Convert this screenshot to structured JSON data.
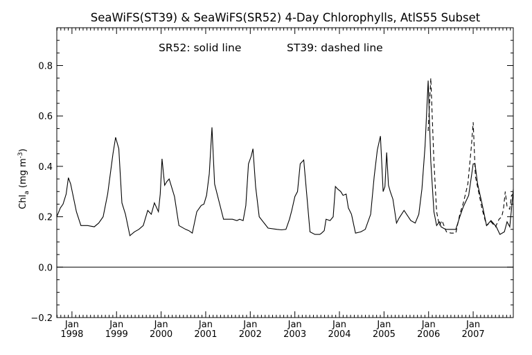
{
  "chart_data": {
    "type": "line",
    "title": "SeaWiFS(ST39) & SeaWiFS(SR52) 4-Day Chlorophylls, AtlS55 Subset",
    "annotation_left": "SR52: solid line",
    "annotation_right": "ST39: dashed line",
    "ylabel": "Chl",
    "ylabel_sub": "a",
    "ylabel_unit_open": " (mg m",
    "ylabel_unit_sup": "-3",
    "ylabel_unit_close": ")",
    "xlabel": "",
    "xlim": [
      1997.66,
      2007.9
    ],
    "ylim": [
      -0.2,
      0.95
    ],
    "yticks": [
      {
        "value": -0.2,
        "label": "−0.2"
      },
      {
        "value": 0.0,
        "label": "0.0"
      },
      {
        "value": 0.2,
        "label": "0.2"
      },
      {
        "value": 0.4,
        "label": "0.4"
      },
      {
        "value": 0.6,
        "label": "0.6"
      },
      {
        "value": 0.8,
        "label": "0.8"
      }
    ],
    "xticks": [
      {
        "value": 1998.0,
        "month": "Jan",
        "year": "1998"
      },
      {
        "value": 1999.0,
        "month": "Jan",
        "year": "1999"
      },
      {
        "value": 2000.0,
        "month": "Jan",
        "year": "2000"
      },
      {
        "value": 2001.0,
        "month": "Jan",
        "year": "2001"
      },
      {
        "value": 2002.0,
        "month": "Jan",
        "year": "2002"
      },
      {
        "value": 2003.0,
        "month": "Jan",
        "year": "2003"
      },
      {
        "value": 2004.0,
        "month": "Jan",
        "year": "2004"
      },
      {
        "value": 2005.0,
        "month": "Jan",
        "year": "2005"
      },
      {
        "value": 2006.0,
        "month": "Jan",
        "year": "2006"
      },
      {
        "value": 2007.0,
        "month": "Jan",
        "year": "2007"
      }
    ],
    "zero_line": true,
    "series": [
      {
        "name": "SR52",
        "style": "solid",
        "x": [
          1997.66,
          1997.74,
          1997.8,
          1997.87,
          1997.92,
          1997.97,
          1998.1,
          1998.2,
          1998.35,
          1998.5,
          1998.6,
          1998.7,
          1998.8,
          1998.92,
          1998.98,
          1999.05,
          1999.12,
          1999.2,
          1999.3,
          1999.4,
          1999.5,
          1999.6,
          1999.7,
          1999.78,
          1999.85,
          1999.94,
          1999.98,
          2000.02,
          2000.08,
          2000.13,
          2000.18,
          2000.3,
          2000.4,
          2000.55,
          2000.62,
          2000.7,
          2000.8,
          2000.9,
          2000.96,
          2001.02,
          2001.08,
          2001.14,
          2001.2,
          2001.4,
          2001.6,
          2001.7,
          2001.76,
          2001.84,
          2001.9,
          2001.96,
          2002.02,
          2002.06,
          2002.12,
          2002.2,
          2002.4,
          2002.6,
          2002.7,
          2002.8,
          2002.88,
          2002.93,
          2003.0,
          2003.06,
          2003.12,
          2003.2,
          2003.34,
          2003.45,
          2003.56,
          2003.6,
          2003.66,
          2003.7,
          2003.79,
          2003.86,
          2003.91,
          2003.96,
          2004.03,
          2004.08,
          2004.15,
          2004.2,
          2004.27,
          2004.36,
          2004.48,
          2004.58,
          2004.7,
          2004.78,
          2004.85,
          2004.92,
          2004.98,
          2005.02,
          2005.06,
          2005.1,
          2005.14,
          2005.2,
          2005.28,
          2005.34,
          2005.45,
          2005.6,
          2005.7,
          2005.78,
          2005.85,
          2005.92,
          2005.99,
          2006.05,
          2006.12,
          2006.18,
          2006.24,
          2006.28,
          2006.38,
          2006.5,
          2006.61,
          2006.7,
          2006.78,
          2006.9,
          2007.0,
          2007.04,
          2007.1,
          2007.2,
          2007.3,
          2007.4,
          2007.52,
          2007.6,
          2007.7,
          2007.76,
          2007.82,
          2007.86,
          2007.9
        ],
        "y": [
          0.2,
          0.235,
          0.25,
          0.29,
          0.355,
          0.33,
          0.22,
          0.165,
          0.165,
          0.16,
          0.175,
          0.2,
          0.29,
          0.45,
          0.515,
          0.47,
          0.255,
          0.21,
          0.125,
          0.14,
          0.15,
          0.165,
          0.225,
          0.21,
          0.255,
          0.22,
          0.29,
          0.43,
          0.325,
          0.34,
          0.35,
          0.28,
          0.165,
          0.15,
          0.145,
          0.135,
          0.22,
          0.245,
          0.25,
          0.285,
          0.37,
          0.555,
          0.33,
          0.19,
          0.19,
          0.185,
          0.19,
          0.185,
          0.245,
          0.41,
          0.44,
          0.47,
          0.32,
          0.2,
          0.155,
          0.15,
          0.148,
          0.15,
          0.19,
          0.225,
          0.28,
          0.3,
          0.41,
          0.425,
          0.14,
          0.13,
          0.13,
          0.135,
          0.145,
          0.19,
          0.185,
          0.2,
          0.32,
          0.31,
          0.3,
          0.285,
          0.29,
          0.235,
          0.21,
          0.135,
          0.14,
          0.15,
          0.21,
          0.36,
          0.465,
          0.52,
          0.3,
          0.32,
          0.455,
          0.325,
          0.3,
          0.27,
          0.175,
          0.195,
          0.225,
          0.185,
          0.175,
          0.21,
          0.31,
          0.48,
          0.74,
          0.42,
          0.22,
          0.165,
          0.18,
          0.16,
          0.15,
          0.15,
          0.15,
          0.2,
          0.24,
          0.285,
          0.41,
          0.41,
          0.33,
          0.25,
          0.165,
          0.185,
          0.16,
          0.13,
          0.14,
          0.18,
          0.16,
          0.23,
          0.31
        ]
      },
      {
        "name": "ST39",
        "style": "dashed",
        "x": [
          2005.99,
          2006.05,
          2006.12,
          2006.18,
          2006.24,
          2006.3,
          2006.4,
          2006.5,
          2006.61,
          2006.7,
          2006.78,
          2006.88,
          2006.96,
          2007.0,
          2007.05,
          2007.12,
          2007.2,
          2007.3,
          2007.4,
          2007.5,
          2007.58,
          2007.64,
          2007.68,
          2007.72,
          2007.76,
          2007.82,
          2007.86,
          2007.9
        ],
        "y": [
          0.54,
          0.75,
          0.42,
          0.22,
          0.165,
          0.185,
          0.14,
          0.135,
          0.135,
          0.21,
          0.255,
          0.33,
          0.48,
          0.575,
          0.36,
          0.3,
          0.23,
          0.165,
          0.18,
          0.16,
          0.19,
          0.2,
          0.23,
          0.3,
          0.24,
          0.23,
          0.285,
          0.29
        ]
      }
    ]
  }
}
